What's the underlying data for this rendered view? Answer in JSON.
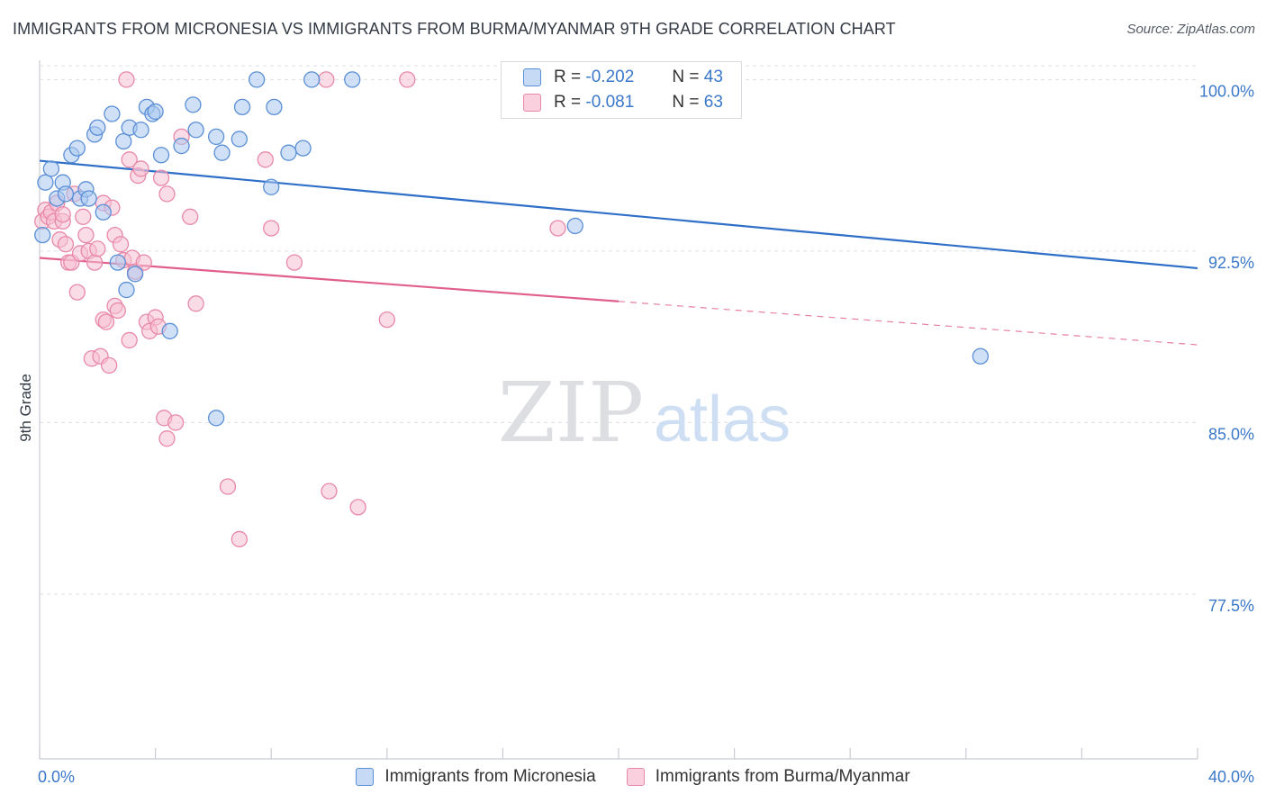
{
  "title": "IMMIGRANTS FROM MICRONESIA VS IMMIGRANTS FROM BURMA/MYANMAR 9TH GRADE CORRELATION CHART",
  "source": "Source: ZipAtlas.com",
  "watermark": {
    "zip": "ZIP",
    "atlas": "atlas"
  },
  "legend": {
    "r_label": "R =",
    "n_label": "N =",
    "series": [
      {
        "r": "-0.202",
        "n": "43"
      },
      {
        "r": "-0.081",
        "n": "63"
      }
    ]
  },
  "colors": {
    "blue_fill": "#a9c8f0",
    "blue_stroke": "#5b8fd6",
    "blue_line": "#2f6fc7",
    "pink_fill": "#f6bfd1",
    "pink_stroke": "#e889a8",
    "pink_line": "#e0608a",
    "axis_text": "#3b78c9"
  },
  "chart_data": {
    "type": "scatter",
    "title": "IMMIGRANTS FROM MICRONESIA VS IMMIGRANTS FROM BURMA/MYANMAR 9TH GRADE CORRELATION CHART",
    "xlabel": "",
    "ylabel": "9th Grade",
    "xlim": [
      0,
      40
    ],
    "ylim": [
      70,
      101
    ],
    "x_tick_labels": [
      "0.0%",
      "40.0%"
    ],
    "y_ticks": [
      {
        "value": 100,
        "label": "100.0%"
      },
      {
        "value": 92.5,
        "label": "92.5%"
      },
      {
        "value": 85,
        "label": "85.0%"
      },
      {
        "value": 77.5,
        "label": "77.5%"
      }
    ],
    "grid": true,
    "series": [
      {
        "name": "Immigrants from Micronesia",
        "color": "blue",
        "trend": {
          "x0": 0,
          "y0": 96.45,
          "x1": 40,
          "y1": 91.75,
          "solid_to": 40
        },
        "points": [
          [
            0.1,
            93.2
          ],
          [
            0.2,
            95.5
          ],
          [
            0.4,
            96.1
          ],
          [
            0.6,
            94.8
          ],
          [
            0.8,
            95.5
          ],
          [
            0.9,
            95.0
          ],
          [
            1.1,
            96.7
          ],
          [
            1.3,
            97.0
          ],
          [
            1.4,
            94.8
          ],
          [
            1.6,
            95.2
          ],
          [
            1.7,
            94.8
          ],
          [
            1.9,
            97.6
          ],
          [
            2.0,
            97.9
          ],
          [
            2.2,
            94.2
          ],
          [
            2.5,
            98.5
          ],
          [
            2.7,
            92.0
          ],
          [
            2.9,
            97.3
          ],
          [
            3.0,
            90.8
          ],
          [
            3.1,
            97.9
          ],
          [
            3.3,
            91.5
          ],
          [
            3.5,
            97.8
          ],
          [
            3.7,
            98.8
          ],
          [
            3.9,
            98.5
          ],
          [
            4.0,
            98.6
          ],
          [
            4.2,
            96.7
          ],
          [
            4.5,
            89.0
          ],
          [
            4.9,
            97.1
          ],
          [
            5.3,
            98.9
          ],
          [
            5.4,
            97.8
          ],
          [
            6.1,
            97.5
          ],
          [
            6.3,
            96.8
          ],
          [
            6.9,
            97.4
          ],
          [
            7.5,
            100.0
          ],
          [
            7.0,
            98.8
          ],
          [
            6.1,
            85.2
          ],
          [
            8.1,
            98.8
          ],
          [
            8.0,
            95.3
          ],
          [
            8.6,
            96.8
          ],
          [
            9.1,
            97.0
          ],
          [
            9.4,
            100.0
          ],
          [
            10.8,
            100.0
          ],
          [
            18.5,
            93.6
          ],
          [
            32.5,
            87.9
          ]
        ]
      },
      {
        "name": "Immigrants from Burma/Myanmar",
        "color": "pink",
        "trend": {
          "x0": 0,
          "y0": 92.2,
          "x1": 40,
          "y1": 88.4,
          "solid_to": 20
        },
        "points": [
          [
            0.1,
            93.8
          ],
          [
            0.2,
            94.3
          ],
          [
            0.3,
            94.0
          ],
          [
            0.4,
            94.2
          ],
          [
            0.5,
            93.8
          ],
          [
            0.6,
            94.6
          ],
          [
            0.7,
            93.0
          ],
          [
            0.8,
            93.8
          ],
          [
            0.8,
            94.1
          ],
          [
            0.9,
            92.8
          ],
          [
            1.0,
            92.0
          ],
          [
            1.1,
            92.0
          ],
          [
            1.2,
            95.0
          ],
          [
            1.3,
            90.7
          ],
          [
            1.4,
            92.4
          ],
          [
            1.5,
            94.0
          ],
          [
            1.6,
            93.2
          ],
          [
            1.7,
            92.5
          ],
          [
            1.8,
            87.8
          ],
          [
            1.9,
            92.0
          ],
          [
            2.0,
            92.6
          ],
          [
            2.1,
            87.9
          ],
          [
            2.2,
            94.6
          ],
          [
            2.2,
            89.5
          ],
          [
            2.3,
            89.4
          ],
          [
            2.4,
            87.5
          ],
          [
            2.5,
            94.4
          ],
          [
            2.6,
            90.1
          ],
          [
            2.6,
            93.2
          ],
          [
            2.7,
            89.9
          ],
          [
            2.8,
            92.8
          ],
          [
            2.9,
            92.1
          ],
          [
            3.1,
            96.5
          ],
          [
            3.1,
            88.6
          ],
          [
            3.2,
            92.2
          ],
          [
            3.3,
            91.6
          ],
          [
            3.4,
            95.8
          ],
          [
            3.5,
            96.1
          ],
          [
            3.6,
            92.0
          ],
          [
            3.7,
            89.4
          ],
          [
            3.8,
            89.0
          ],
          [
            4.0,
            89.6
          ],
          [
            4.1,
            89.2
          ],
          [
            4.2,
            95.7
          ],
          [
            4.4,
            95.0
          ],
          [
            4.3,
            85.2
          ],
          [
            4.4,
            84.3
          ],
          [
            4.7,
            85.0
          ],
          [
            4.9,
            97.5
          ],
          [
            5.2,
            94.0
          ],
          [
            5.4,
            90.2
          ],
          [
            6.5,
            82.2
          ],
          [
            6.9,
            79.9
          ],
          [
            7.8,
            96.5
          ],
          [
            8.0,
            93.5
          ],
          [
            8.8,
            92.0
          ],
          [
            9.9,
            100.0
          ],
          [
            10.0,
            82.0
          ],
          [
            11.0,
            81.3
          ],
          [
            12.0,
            89.5
          ],
          [
            12.7,
            100.0
          ],
          [
            17.9,
            93.5
          ],
          [
            3.0,
            100.0
          ]
        ]
      }
    ]
  }
}
